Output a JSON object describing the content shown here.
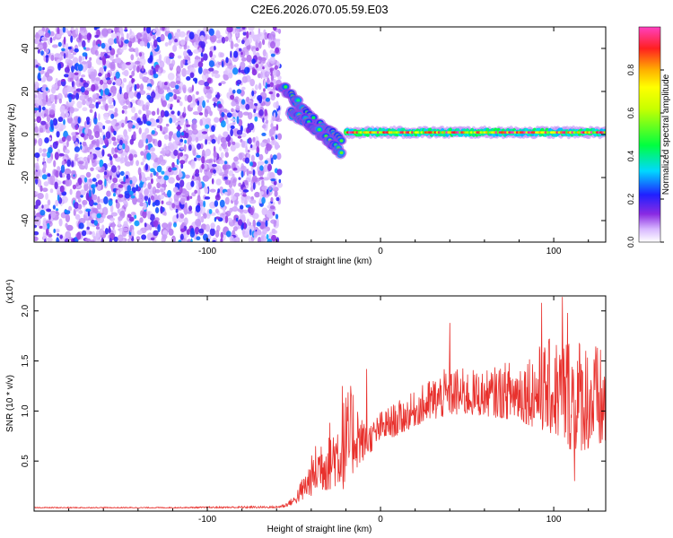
{
  "figure": {
    "title": "C2E6.2026.070.05.59.E03"
  },
  "chart_data": [
    {
      "type": "heatmap",
      "title": "C2E6.2026.070.05.59.E03",
      "xlabel": "Height of straight line (km)",
      "ylabel": "Frequency (Hz)",
      "xlim": [
        -200,
        130
      ],
      "ylim": [
        -50,
        50
      ],
      "xticks": [
        -100,
        0,
        100
      ],
      "yticks": [
        -40,
        -20,
        0,
        20,
        40
      ],
      "colorbar": {
        "label": "Normalized spectral amplitude",
        "range": [
          0.0,
          1.0
        ],
        "ticks": [
          0.0,
          0.2,
          0.4,
          0.6,
          0.8
        ]
      },
      "regions": [
        {
          "name": "noise",
          "x_range": [
            -200,
            -58
          ],
          "freq_range": [
            -50,
            50
          ],
          "amplitude_range": [
            0.05,
            0.3
          ]
        },
        {
          "name": "upper-branch",
          "points": [
            [
              -57,
              22
            ],
            [
              -52,
              19
            ],
            [
              -47,
              14
            ],
            [
              -42,
              9
            ],
            [
              -37,
              5
            ],
            [
              -32,
              3
            ],
            [
              -27,
              0
            ],
            [
              -22,
              -4
            ]
          ]
        },
        {
          "name": "lower-branch",
          "points": [
            [
              -52,
              10
            ],
            [
              -47,
              8
            ],
            [
              -42,
              6
            ],
            [
              -37,
              2
            ],
            [
              -32,
              -1
            ],
            [
              -27,
              -5
            ],
            [
              -22,
              -10
            ]
          ]
        },
        {
          "name": "signal-line",
          "x_range": [
            -20,
            130
          ],
          "center_freq": 1,
          "amplitude_range": [
            0.5,
            1.0
          ]
        }
      ]
    },
    {
      "type": "line",
      "xlabel": "Height of straight line (km)",
      "ylabel": "SNR (10 * v/v)",
      "ylabel_multiplier": "(x10⁴)",
      "xlim": [
        -200,
        130
      ],
      "ylim": [
        0,
        2.15
      ],
      "xticks": [
        -100,
        0,
        100
      ],
      "yticks": [
        0.5,
        1.0,
        1.5,
        2.0
      ],
      "color": "#e8312d",
      "envelope": [
        [
          -200,
          0.03,
          0.04
        ],
        [
          -120,
          0.03,
          0.04
        ],
        [
          -75,
          0.03,
          0.05
        ],
        [
          -60,
          0.03,
          0.05
        ],
        [
          -55,
          0.04,
          0.08
        ],
        [
          -50,
          0.07,
          0.15
        ],
        [
          -45,
          0.1,
          0.35
        ],
        [
          -40,
          0.15,
          0.55
        ],
        [
          -35,
          0.2,
          0.8
        ],
        [
          -30,
          0.2,
          0.9
        ],
        [
          -25,
          0.25,
          1.0
        ],
        [
          -20,
          0.2,
          1.2
        ],
        [
          -15,
          0.4,
          1.3
        ],
        [
          -10,
          0.5,
          0.9
        ],
        [
          -5,
          0.6,
          0.9
        ],
        [
          0,
          0.7,
          1.0
        ],
        [
          10,
          0.75,
          1.1
        ],
        [
          20,
          0.85,
          1.2
        ],
        [
          30,
          0.9,
          1.35
        ],
        [
          40,
          0.95,
          1.45
        ],
        [
          60,
          0.95,
          1.4
        ],
        [
          80,
          0.9,
          1.55
        ],
        [
          100,
          0.75,
          1.75
        ],
        [
          110,
          0.6,
          1.8
        ],
        [
          120,
          0.6,
          1.75
        ],
        [
          130,
          0.6,
          1.6
        ]
      ],
      "spikes": [
        [
          -22,
          1.25
        ],
        [
          -8,
          1.42
        ],
        [
          40,
          1.88
        ],
        [
          93,
          2.08
        ],
        [
          105,
          2.14
        ],
        [
          108,
          1.98
        ],
        [
          112,
          0.3
        ]
      ]
    }
  ]
}
